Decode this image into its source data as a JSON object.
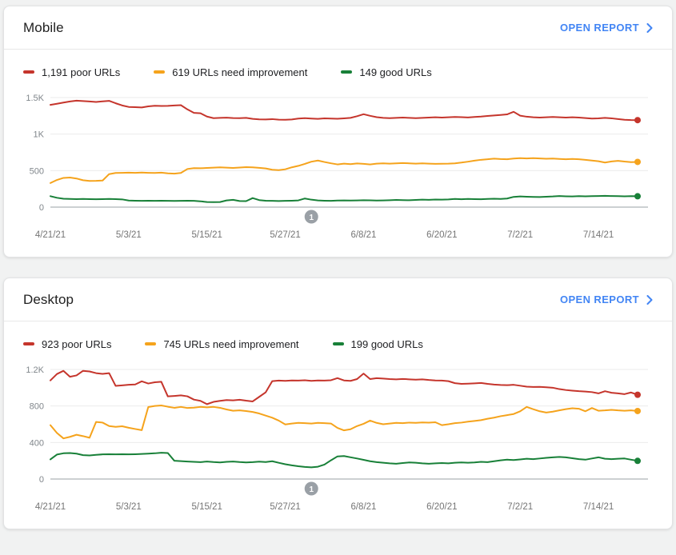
{
  "colors": {
    "poor": "#c5352c",
    "improve": "#f5a31c",
    "good": "#188038",
    "link": "#4285f4",
    "badge": "#9aa0a6",
    "axis_label": "#80868b",
    "x_label": "#757575",
    "gridline": "#ebebeb",
    "zero_line": "#9aa0a6"
  },
  "cards": [
    {
      "title": "Mobile",
      "open_report": "OPEN REPORT",
      "legend": [
        {
          "label": "1,191 poor URLs",
          "color_key": "poor"
        },
        {
          "label": "619 URLs need improvement",
          "color_key": "improve"
        },
        {
          "label": "149 good URLs",
          "color_key": "good"
        }
      ]
    },
    {
      "title": "Desktop",
      "open_report": "OPEN REPORT",
      "legend": [
        {
          "label": "923 poor URLs",
          "color_key": "poor"
        },
        {
          "label": "745 URLs need improvement",
          "color_key": "improve"
        },
        {
          "label": "199 good URLs",
          "color_key": "good"
        }
      ]
    }
  ],
  "chart_data": [
    {
      "type": "line",
      "title": "Mobile",
      "x_start": "4/21/21",
      "x_end": "7/20/21",
      "points_cadence": "daily",
      "grid": true,
      "legend_position": "top",
      "ylim": [
        0,
        1500
      ],
      "y_ticks": [
        {
          "v": 0,
          "label": "0"
        },
        {
          "v": 500,
          "label": "500"
        },
        {
          "v": 1000,
          "label": "1K"
        },
        {
          "v": 1500,
          "label": "1.5K"
        }
      ],
      "x_ticks": [
        {
          "day": 0,
          "label": "4/21/21"
        },
        {
          "day": 12,
          "label": "5/3/21"
        },
        {
          "day": 24,
          "label": "5/15/21"
        },
        {
          "day": 36,
          "label": "5/27/21"
        },
        {
          "day": 48,
          "label": "6/8/21"
        },
        {
          "day": 60,
          "label": "6/20/21"
        },
        {
          "day": 72,
          "label": "7/2/21"
        },
        {
          "day": 84,
          "label": "7/14/21"
        }
      ],
      "annotation": {
        "label": "1",
        "day": 40
      },
      "series": [
        {
          "name": "poor URLs",
          "current": 1191,
          "color_key": "poor",
          "values": [
            1400,
            1415,
            1432,
            1447,
            1458,
            1452,
            1446,
            1440,
            1448,
            1455,
            1422,
            1392,
            1372,
            1368,
            1364,
            1380,
            1388,
            1385,
            1386,
            1392,
            1396,
            1338,
            1290,
            1285,
            1240,
            1218,
            1222,
            1225,
            1220,
            1218,
            1222,
            1208,
            1202,
            1200,
            1205,
            1198,
            1196,
            1200,
            1212,
            1218,
            1212,
            1208,
            1215,
            1212,
            1210,
            1216,
            1222,
            1245,
            1272,
            1250,
            1232,
            1222,
            1218,
            1222,
            1226,
            1222,
            1218,
            1222,
            1226,
            1230,
            1226,
            1230,
            1235,
            1232,
            1228,
            1235,
            1240,
            1248,
            1255,
            1262,
            1270,
            1305,
            1252,
            1238,
            1230,
            1226,
            1230,
            1234,
            1230,
            1226,
            1230,
            1226,
            1220,
            1212,
            1216,
            1222,
            1216,
            1206,
            1196,
            1192,
            1191
          ]
        },
        {
          "name": "URLs need improvement",
          "current": 619,
          "color_key": "improve",
          "values": [
            330,
            372,
            400,
            405,
            392,
            368,
            358,
            360,
            364,
            452,
            468,
            470,
            472,
            470,
            474,
            470,
            468,
            472,
            462,
            458,
            468,
            522,
            534,
            532,
            536,
            540,
            545,
            540,
            536,
            542,
            548,
            545,
            538,
            530,
            512,
            506,
            518,
            545,
            565,
            592,
            622,
            638,
            618,
            600,
            585,
            595,
            588,
            598,
            592,
            585,
            595,
            600,
            596,
            600,
            604,
            600,
            596,
            600,
            596,
            592,
            594,
            596,
            600,
            610,
            622,
            636,
            648,
            655,
            664,
            658,
            655,
            665,
            670,
            666,
            670,
            666,
            662,
            665,
            660,
            656,
            660,
            655,
            648,
            638,
            628,
            610,
            625,
            634,
            624,
            616,
            619
          ]
        },
        {
          "name": "good URLs",
          "current": 149,
          "color_key": "good",
          "values": [
            150,
            128,
            115,
            112,
            110,
            112,
            110,
            108,
            110,
            112,
            110,
            106,
            90,
            88,
            86,
            88,
            86,
            88,
            86,
            85,
            86,
            88,
            86,
            80,
            70,
            68,
            70,
            92,
            100,
            84,
            82,
            124,
            96,
            88,
            86,
            84,
            86,
            88,
            92,
            118,
            102,
            92,
            88,
            86,
            90,
            92,
            90,
            92,
            95,
            93,
            90,
            92,
            95,
            98,
            96,
            94,
            98,
            102,
            100,
            104,
            102,
            106,
            112,
            108,
            112,
            110,
            108,
            112,
            115,
            112,
            118,
            140,
            146,
            142,
            140,
            138,
            142,
            146,
            152,
            148,
            146,
            150,
            148,
            150,
            152,
            154,
            152,
            150,
            148,
            150,
            149
          ]
        }
      ]
    },
    {
      "type": "line",
      "title": "Desktop",
      "x_start": "4/21/21",
      "x_end": "7/20/21",
      "points_cadence": "daily",
      "grid": true,
      "legend_position": "top",
      "ylim": [
        0,
        1200
      ],
      "y_ticks": [
        {
          "v": 0,
          "label": "0"
        },
        {
          "v": 400,
          "label": "400"
        },
        {
          "v": 800,
          "label": "800"
        },
        {
          "v": 1200,
          "label": "1.2K"
        }
      ],
      "x_ticks": [
        {
          "day": 0,
          "label": "4/21/21"
        },
        {
          "day": 12,
          "label": "5/3/21"
        },
        {
          "day": 24,
          "label": "5/15/21"
        },
        {
          "day": 36,
          "label": "5/27/21"
        },
        {
          "day": 48,
          "label": "6/8/21"
        },
        {
          "day": 60,
          "label": "6/20/21"
        },
        {
          "day": 72,
          "label": "7/2/21"
        },
        {
          "day": 84,
          "label": "7/14/21"
        }
      ],
      "annotation": {
        "label": "1",
        "day": 40
      },
      "series": [
        {
          "name": "poor URLs",
          "current": 923,
          "color_key": "poor",
          "values": [
            1080,
            1150,
            1185,
            1120,
            1135,
            1185,
            1178,
            1160,
            1152,
            1160,
            1020,
            1026,
            1032,
            1036,
            1070,
            1046,
            1060,
            1065,
            905,
            910,
            916,
            906,
            870,
            856,
            820,
            845,
            856,
            865,
            862,
            868,
            858,
            850,
            900,
            950,
            1072,
            1078,
            1075,
            1080,
            1078,
            1082,
            1075,
            1080,
            1078,
            1082,
            1105,
            1080,
            1075,
            1095,
            1155,
            1095,
            1105,
            1100,
            1095,
            1092,
            1096,
            1092,
            1088,
            1092,
            1085,
            1080,
            1078,
            1072,
            1050,
            1042,
            1045,
            1048,
            1052,
            1042,
            1035,
            1030,
            1028,
            1032,
            1022,
            1012,
            1008,
            1010,
            1005,
            1000,
            985,
            975,
            968,
            962,
            958,
            952,
            938,
            962,
            945,
            938,
            930,
            948,
            923
          ]
        },
        {
          "name": "URLs need improvement",
          "current": 745,
          "color_key": "improve",
          "values": [
            590,
            505,
            445,
            462,
            485,
            470,
            452,
            625,
            618,
            580,
            572,
            578,
            562,
            548,
            535,
            788,
            800,
            806,
            792,
            780,
            790,
            778,
            782,
            790,
            785,
            790,
            780,
            762,
            748,
            752,
            745,
            735,
            718,
            695,
            672,
            640,
            598,
            608,
            615,
            612,
            608,
            615,
            612,
            608,
            560,
            533,
            545,
            580,
            605,
            640,
            615,
            600,
            608,
            615,
            612,
            618,
            615,
            620,
            618,
            622,
            590,
            600,
            612,
            618,
            628,
            636,
            645,
            660,
            672,
            688,
            700,
            712,
            742,
            790,
            765,
            742,
            728,
            738,
            752,
            765,
            775,
            770,
            742,
            778,
            748,
            752,
            758,
            752,
            748,
            752,
            745
          ]
        },
        {
          "name": "good URLs",
          "current": 199,
          "color_key": "good",
          "values": [
            215,
            268,
            282,
            285,
            278,
            262,
            258,
            265,
            270,
            272,
            270,
            272,
            270,
            272,
            275,
            278,
            282,
            288,
            285,
            200,
            196,
            192,
            188,
            185,
            192,
            186,
            182,
            188,
            192,
            186,
            182,
            185,
            190,
            186,
            195,
            178,
            162,
            150,
            140,
            132,
            128,
            135,
            158,
            205,
            248,
            252,
            238,
            225,
            210,
            195,
            185,
            178,
            172,
            168,
            175,
            182,
            178,
            172,
            168,
            172,
            175,
            172,
            178,
            182,
            178,
            182,
            188,
            185,
            195,
            205,
            212,
            208,
            215,
            222,
            218,
            225,
            232,
            238,
            242,
            238,
            228,
            218,
            212,
            225,
            238,
            222,
            218,
            222,
            225,
            212,
            199
          ]
        }
      ]
    }
  ]
}
